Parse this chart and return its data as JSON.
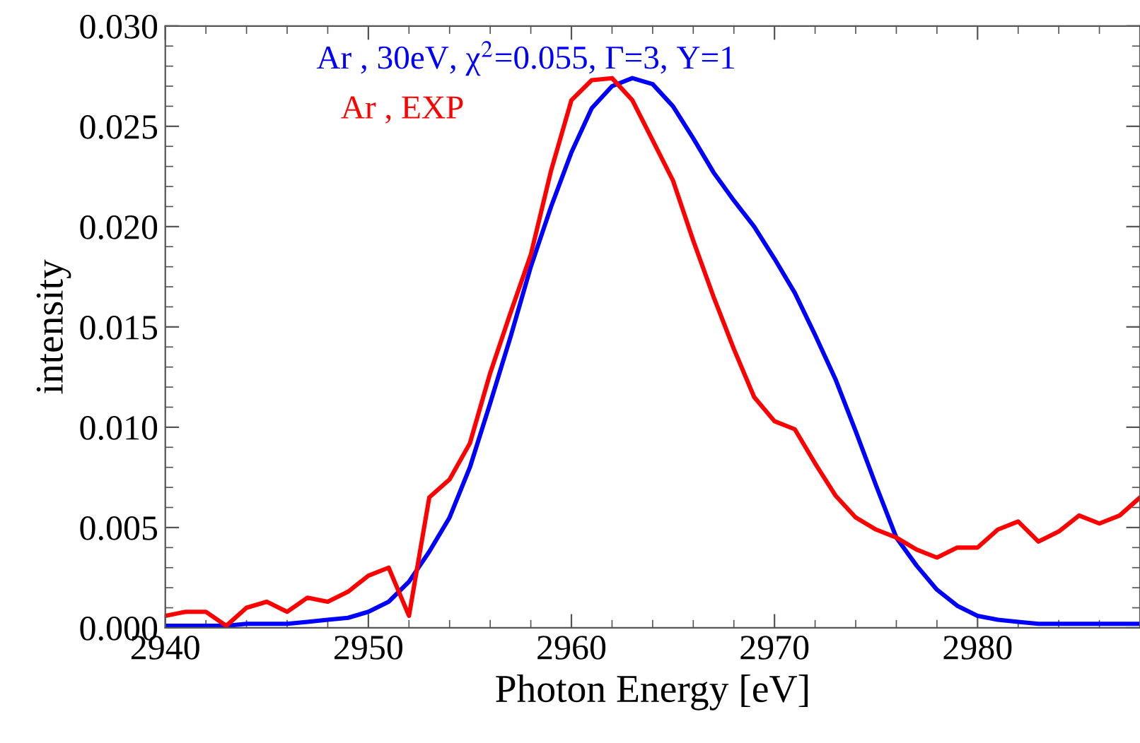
{
  "chart_data": {
    "type": "line",
    "xlabel": "Photon Energy [eV]",
    "ylabel": "intensity",
    "xlim": [
      2940,
      2988
    ],
    "ylim": [
      0,
      0.03
    ],
    "xticks": [
      2940,
      2950,
      2960,
      2970,
      2980
    ],
    "yticks": [
      {
        "value": 0,
        "label": "0.000"
      },
      {
        "value": 0.005,
        "label": "0.005"
      },
      {
        "value": 0.01,
        "label": "0.010"
      },
      {
        "value": 0.015,
        "label": "0.015"
      },
      {
        "value": 0.02,
        "label": "0.020"
      },
      {
        "value": 0.025,
        "label": "0.025"
      },
      {
        "value": 0.03,
        "label": "0.030"
      }
    ],
    "grid": false,
    "legend": "top",
    "marker": "none",
    "line_style": "solid",
    "x": [
      2940,
      2941,
      2942,
      2943,
      2944,
      2945,
      2946,
      2947,
      2948,
      2949,
      2950,
      2951,
      2952,
      2953,
      2954,
      2955,
      2956,
      2957,
      2958,
      2959,
      2960,
      2961,
      2962,
      2963,
      2964,
      2965,
      2966,
      2967,
      2968,
      2969,
      2970,
      2971,
      2972,
      2973,
      2974,
      2975,
      2976,
      2977,
      2978,
      2979,
      2980,
      2981,
      2982,
      2983,
      2984,
      2985,
      2986,
      2987,
      2988
    ],
    "series": [
      {
        "name": "Ar , 30eV, χ$^{2}$=0.055, Γ=3, Υ=1",
        "color": "#0000ff",
        "values": [
          0.0001,
          0.0001,
          0.0001,
          0.0001,
          0.0002,
          0.0002,
          0.0002,
          0.0003,
          0.0004,
          0.0005,
          0.0008,
          0.0013,
          0.0023,
          0.0038,
          0.0055,
          0.008,
          0.0112,
          0.0145,
          0.018,
          0.021,
          0.0237,
          0.0259,
          0.027,
          0.0274,
          0.0271,
          0.026,
          0.0244,
          0.0227,
          0.0213,
          0.02,
          0.0184,
          0.0167,
          0.0146,
          0.0124,
          0.0098,
          0.0071,
          0.0045,
          0.0031,
          0.0019,
          0.0011,
          0.0006,
          0.0004,
          0.0003,
          0.0002,
          0.0002,
          0.0002,
          0.0002,
          0.0002,
          0.0002
        ]
      },
      {
        "name": "Ar , EXP",
        "color": "#ff0000",
        "values": [
          0.0006,
          0.0008,
          0.0008,
          0.0001,
          0.001,
          0.0013,
          0.0008,
          0.0015,
          0.0013,
          0.0018,
          0.0026,
          0.003,
          0.0006,
          0.0065,
          0.0074,
          0.0092,
          0.0127,
          0.0157,
          0.0186,
          0.0228,
          0.0263,
          0.0273,
          0.0274,
          0.0263,
          0.0243,
          0.0223,
          0.0193,
          0.0165,
          0.0139,
          0.0115,
          0.0103,
          0.0099,
          0.0082,
          0.0066,
          0.0055,
          0.0049,
          0.0045,
          0.0039,
          0.0035,
          0.004,
          0.004,
          0.0049,
          0.0053,
          0.0043,
          0.0048,
          0.0056,
          0.0052,
          0.0056,
          0.0065
        ]
      }
    ]
  }
}
